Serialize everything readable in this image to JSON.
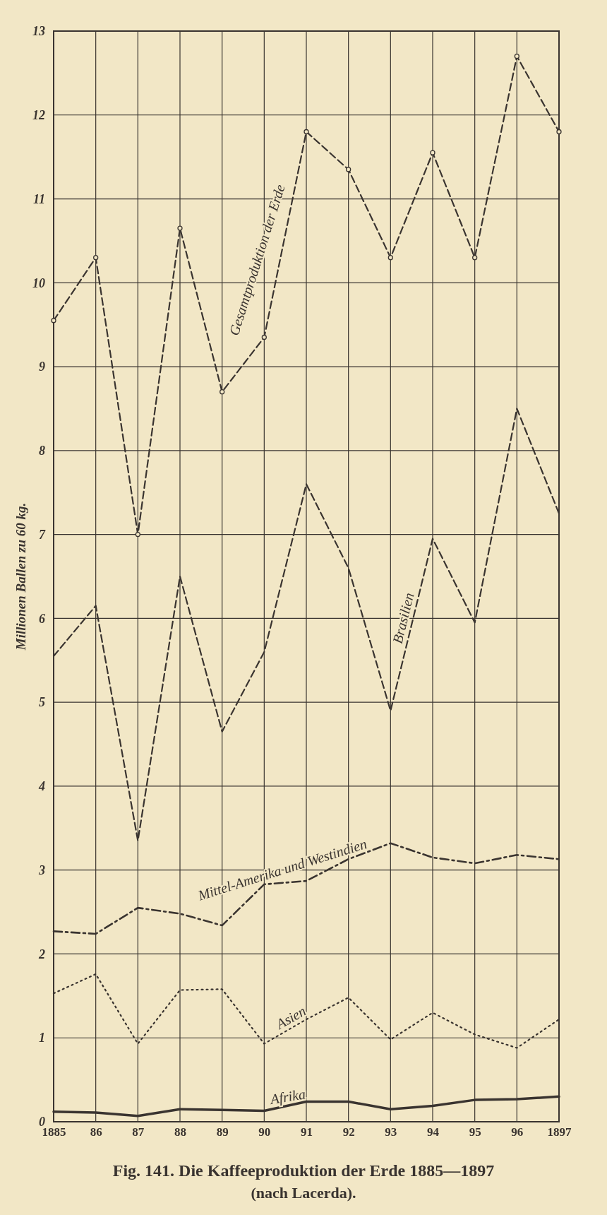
{
  "chart_data": {
    "type": "line",
    "title": "Fig. 141.  Die Kaffeeproduktion der Erde 1885—1897",
    "subtitle": "(nach Lacerda).",
    "ylabel": "Millionen Ballen zu 60 kg.",
    "x": [
      1885,
      1886,
      1887,
      1888,
      1889,
      1890,
      1891,
      1892,
      1893,
      1894,
      1895,
      1896,
      1897
    ],
    "xlim": [
      1885,
      1897
    ],
    "xticks": [
      1885,
      {
        "value": 1886,
        "label": "86"
      },
      {
        "value": 1887,
        "label": "87"
      },
      {
        "value": 1888,
        "label": "88"
      },
      {
        "value": 1889,
        "label": "89"
      },
      {
        "value": 1890,
        "label": "90"
      },
      {
        "value": 1891,
        "label": "91"
      },
      {
        "value": 1892,
        "label": "92"
      },
      {
        "value": 1893,
        "label": "93"
      },
      {
        "value": 1894,
        "label": "94"
      },
      {
        "value": 1895,
        "label": "95"
      },
      {
        "value": 1896,
        "label": "96"
      },
      1897
    ],
    "ylim": [
      0,
      13
    ],
    "yticks": [
      0,
      1,
      2,
      3,
      4,
      5,
      6,
      7,
      8,
      9,
      10,
      11,
      12,
      13
    ],
    "grid": true,
    "legend": false,
    "series": [
      {
        "name": "Gesamtproduktion der Erde",
        "color": "#3a3430",
        "line_style": "dashed",
        "marker": "circle",
        "values": [
          9.55,
          10.3,
          7.0,
          10.65,
          8.7,
          9.35,
          11.8,
          11.35,
          10.3,
          11.55,
          10.3,
          12.7,
          11.8
        ]
      },
      {
        "name": "Brasilien",
        "color": "#3a3430",
        "line_style": "dashed",
        "marker": "none",
        "values": [
          5.55,
          6.15,
          3.35,
          6.5,
          4.65,
          5.6,
          7.6,
          6.6,
          4.9,
          6.95,
          5.95,
          8.5,
          7.25
        ]
      },
      {
        "name": "Mittel-Amerika und Westindien",
        "color": "#3a3430",
        "line_style": "dashdot",
        "marker": "none",
        "values": [
          2.27,
          2.24,
          2.55,
          2.48,
          2.34,
          2.83,
          2.87,
          3.13,
          3.32,
          3.15,
          3.08,
          3.18,
          3.13
        ]
      },
      {
        "name": "Asien",
        "color": "#3a3430",
        "line_style": "dotted",
        "marker": "none",
        "values": [
          1.53,
          1.76,
          0.93,
          1.57,
          1.58,
          0.93,
          1.22,
          1.48,
          0.98,
          1.3,
          1.04,
          0.88,
          1.22
        ]
      },
      {
        "name": "Afrika",
        "color": "#3a3430",
        "line_style": "solid",
        "marker": "none",
        "values": [
          0.12,
          0.11,
          0.07,
          0.15,
          0.14,
          0.13,
          0.24,
          0.24,
          0.15,
          0.19,
          0.26,
          0.27,
          0.3
        ]
      }
    ]
  }
}
